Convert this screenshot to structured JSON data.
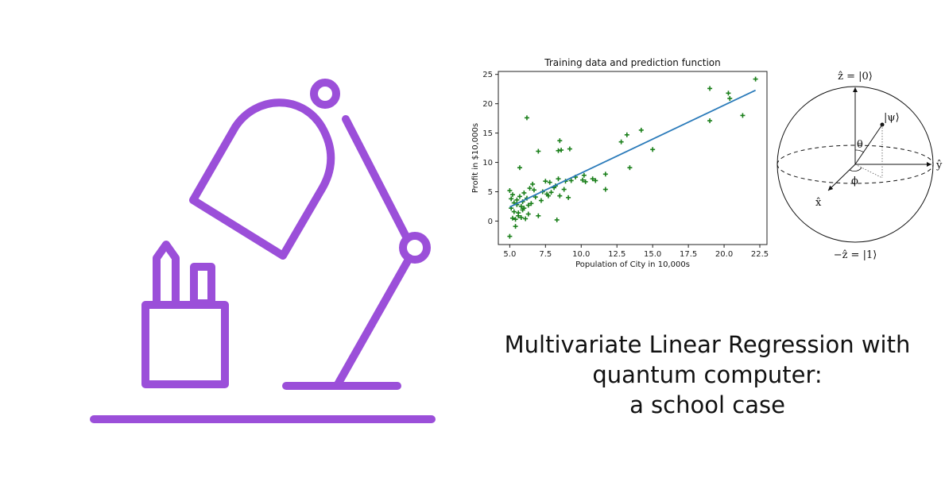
{
  "colors": {
    "accent_purple": "#9b4fd9",
    "scatter_green": "#1a7f1a",
    "fit_line": "#2b7bba"
  },
  "illustration": {
    "icon": "desk-lamp-and-pencil-cup-icon"
  },
  "chart_data": {
    "type": "scatter",
    "title": "Training data and prediction function",
    "xlabel": "Population of City in 10,000s",
    "ylabel": "Profit in $10,000s",
    "xlim": [
      4.2,
      23.0
    ],
    "ylim": [
      -4.0,
      25.5
    ],
    "xticks": [
      5.0,
      7.5,
      10.0,
      12.5,
      15.0,
      17.5,
      20.0,
      22.5
    ],
    "xtick_labels": [
      "5.0",
      "7.5",
      "10.0",
      "12.5",
      "15.0",
      "17.5",
      "20.0",
      "22.5"
    ],
    "yticks": [
      0,
      5,
      10,
      15,
      20,
      25
    ],
    "ytick_labels": [
      "0",
      "5",
      "10",
      "15",
      "20",
      "25"
    ],
    "grid": false,
    "series": [
      {
        "type": "scatter",
        "marker": "+",
        "points": [
          [
            5.0,
            -2.6
          ],
          [
            5.0,
            5.2
          ],
          [
            5.1,
            3.8
          ],
          [
            5.1,
            2.2
          ],
          [
            5.2,
            4.5
          ],
          [
            5.2,
            0.5
          ],
          [
            5.3,
            3.1
          ],
          [
            5.3,
            1.6
          ],
          [
            5.4,
            -0.9
          ],
          [
            5.4,
            0.3
          ],
          [
            5.5,
            2.8
          ],
          [
            5.5,
            3.6
          ],
          [
            5.6,
            0.9
          ],
          [
            5.6,
            1.4
          ],
          [
            5.7,
            9.1
          ],
          [
            5.7,
            4.2
          ],
          [
            5.8,
            2.5
          ],
          [
            5.8,
            0.6
          ],
          [
            5.9,
            3.3
          ],
          [
            5.9,
            1.9
          ],
          [
            6.0,
            2.2
          ],
          [
            6.0,
            4.8
          ],
          [
            6.1,
            0.4
          ],
          [
            6.2,
            3.9
          ],
          [
            6.2,
            17.6
          ],
          [
            6.3,
            1.2
          ],
          [
            6.3,
            2.7
          ],
          [
            6.4,
            5.6
          ],
          [
            6.5,
            3.0
          ],
          [
            6.6,
            6.3
          ],
          [
            6.7,
            5.3
          ],
          [
            6.8,
            4.1
          ],
          [
            7.0,
            0.9
          ],
          [
            7.0,
            11.9
          ],
          [
            7.2,
            3.5
          ],
          [
            7.3,
            5.0
          ],
          [
            7.5,
            6.8
          ],
          [
            7.6,
            4.6
          ],
          [
            7.7,
            4.3
          ],
          [
            7.8,
            6.6
          ],
          [
            7.9,
            4.9
          ],
          [
            8.1,
            5.7
          ],
          [
            8.2,
            6.0
          ],
          [
            8.3,
            0.2
          ],
          [
            8.4,
            7.2
          ],
          [
            8.4,
            12.0
          ],
          [
            8.5,
            13.7
          ],
          [
            8.5,
            4.3
          ],
          [
            8.6,
            12.1
          ],
          [
            8.8,
            5.4
          ],
          [
            8.9,
            6.8
          ],
          [
            9.1,
            4.0
          ],
          [
            9.2,
            12.3
          ],
          [
            9.3,
            6.9
          ],
          [
            9.6,
            7.5
          ],
          [
            10.1,
            7.0
          ],
          [
            10.2,
            7.8
          ],
          [
            10.3,
            6.7
          ],
          [
            10.8,
            7.2
          ],
          [
            11.0,
            6.9
          ],
          [
            11.7,
            8.0
          ],
          [
            11.7,
            5.4
          ],
          [
            12.8,
            13.5
          ],
          [
            13.2,
            14.7
          ],
          [
            13.4,
            9.1
          ],
          [
            14.2,
            15.5
          ],
          [
            15.0,
            12.2
          ],
          [
            19.0,
            22.6
          ],
          [
            19.0,
            17.1
          ],
          [
            20.3,
            21.8
          ],
          [
            20.4,
            20.9
          ],
          [
            21.3,
            18.0
          ],
          [
            22.2,
            24.2
          ]
        ]
      },
      {
        "type": "line",
        "x": [
          5.0,
          22.2
        ],
        "y": [
          2.4,
          22.3
        ]
      }
    ]
  },
  "bloch": {
    "labels": {
      "z_plus": "ẑ = |0⟩",
      "z_minus": "−ẑ = |1⟩",
      "y_axis": "ŷ",
      "x_axis": "x̂",
      "psi": "|ψ⟩",
      "theta": "θ",
      "phi": "ϕ"
    }
  },
  "caption": {
    "line1": "Multivariate Linear Regression with",
    "line2": "quantum computer:",
    "line3": "a school case"
  }
}
